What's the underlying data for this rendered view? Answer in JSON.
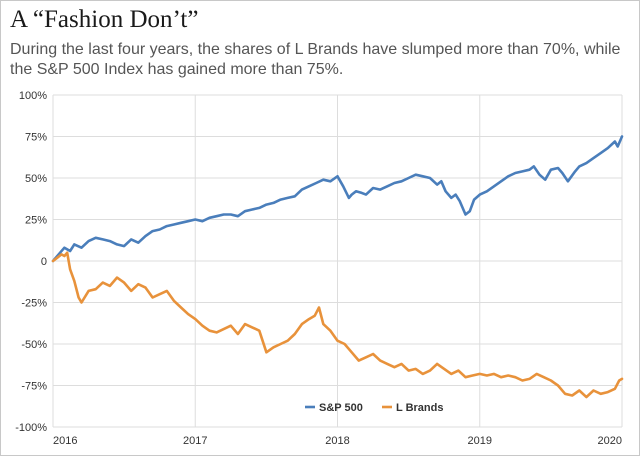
{
  "page": {
    "title": "A “Fashion Don’t”",
    "subtitle": "During the last four years, the shares of L Brands have slumped more than 70%, while the S&P 500 Index has gained more than 75%."
  },
  "colors": {
    "sp500": "#4a7ebb",
    "lbrands": "#e8923b",
    "grid": "#dddddd",
    "text": "#333333"
  },
  "chart_data": {
    "type": "line",
    "title": "A “Fashion Don’t”",
    "subtitle": "During the last four years, the shares of L Brands have slumped more than 70%, while the S&P 500 Index has gained more than 75%.",
    "xlabel": "",
    "ylabel": "",
    "xlim": [
      2016,
      2020
    ],
    "ylim": [
      -100,
      100
    ],
    "x_ticks": [
      2016,
      2017,
      2018,
      2019,
      2020
    ],
    "x_tick_labels": [
      "2016",
      "2017",
      "2018",
      "2019",
      "2020"
    ],
    "y_ticks": [
      100,
      75,
      50,
      25,
      0,
      -25,
      -50,
      -75,
      -100
    ],
    "y_tick_labels": [
      "100%",
      "75%",
      "50%",
      "25%",
      "0",
      "-25%",
      "-50%",
      "-75%",
      "-100%"
    ],
    "grid": true,
    "legend_position": "bottom-center",
    "series": [
      {
        "name": "S&P 500",
        "color": "#4a7ebb",
        "x": [
          2016.0,
          2016.05,
          2016.08,
          2016.12,
          2016.15,
          2016.2,
          2016.25,
          2016.3,
          2016.35,
          2016.4,
          2016.45,
          2016.5,
          2016.55,
          2016.6,
          2016.65,
          2016.7,
          2016.75,
          2016.8,
          2016.85,
          2016.9,
          2016.95,
          2017.0,
          2017.05,
          2017.1,
          2017.15,
          2017.2,
          2017.25,
          2017.3,
          2017.35,
          2017.4,
          2017.45,
          2017.5,
          2017.55,
          2017.6,
          2017.65,
          2017.7,
          2017.75,
          2017.8,
          2017.85,
          2017.9,
          2017.95,
          2018.0,
          2018.04,
          2018.08,
          2018.1,
          2018.13,
          2018.17,
          2018.2,
          2018.25,
          2018.3,
          2018.35,
          2018.4,
          2018.45,
          2018.5,
          2018.55,
          2018.6,
          2018.65,
          2018.7,
          2018.73,
          2018.76,
          2018.8,
          2018.83,
          2018.86,
          2018.9,
          2018.93,
          2018.96,
          2019.0,
          2019.05,
          2019.1,
          2019.15,
          2019.2,
          2019.25,
          2019.3,
          2019.35,
          2019.38,
          2019.42,
          2019.46,
          2019.5,
          2019.55,
          2019.58,
          2019.62,
          2019.67,
          2019.7,
          2019.75,
          2019.8,
          2019.85,
          2019.9,
          2019.95,
          2019.97,
          2020.0
        ],
        "values": [
          0,
          5,
          8,
          6,
          10,
          8,
          12,
          14,
          13,
          12,
          10,
          9,
          13,
          11,
          15,
          18,
          19,
          21,
          22,
          23,
          24,
          25,
          24,
          26,
          27,
          28,
          28,
          27,
          30,
          31,
          32,
          34,
          35,
          37,
          38,
          39,
          43,
          45,
          47,
          49,
          48,
          51,
          45,
          38,
          40,
          42,
          41,
          40,
          44,
          43,
          45,
          47,
          48,
          50,
          52,
          51,
          50,
          46,
          48,
          42,
          38,
          40,
          36,
          28,
          30,
          37,
          40,
          42,
          45,
          48,
          51,
          53,
          54,
          55,
          57,
          52,
          49,
          55,
          56,
          53,
          48,
          54,
          57,
          59,
          62,
          65,
          68,
          72,
          69,
          75
        ]
      },
      {
        "name": "L Brands",
        "color": "#e8923b",
        "x": [
          2016.0,
          2016.03,
          2016.06,
          2016.08,
          2016.1,
          2016.12,
          2016.15,
          2016.18,
          2016.2,
          2016.25,
          2016.3,
          2016.35,
          2016.4,
          2016.45,
          2016.5,
          2016.55,
          2016.6,
          2016.65,
          2016.7,
          2016.75,
          2016.8,
          2016.85,
          2016.9,
          2016.95,
          2017.0,
          2017.05,
          2017.1,
          2017.15,
          2017.2,
          2017.25,
          2017.3,
          2017.35,
          2017.4,
          2017.45,
          2017.5,
          2017.55,
          2017.6,
          2017.65,
          2017.7,
          2017.75,
          2017.8,
          2017.84,
          2017.87,
          2017.9,
          2017.95,
          2018.0,
          2018.05,
          2018.1,
          2018.15,
          2018.2,
          2018.25,
          2018.3,
          2018.35,
          2018.4,
          2018.45,
          2018.5,
          2018.55,
          2018.6,
          2018.65,
          2018.7,
          2018.75,
          2018.8,
          2018.85,
          2018.9,
          2018.95,
          2019.0,
          2019.05,
          2019.1,
          2019.15,
          2019.2,
          2019.25,
          2019.3,
          2019.35,
          2019.4,
          2019.45,
          2019.5,
          2019.55,
          2019.6,
          2019.65,
          2019.7,
          2019.75,
          2019.8,
          2019.85,
          2019.9,
          2019.95,
          2019.98,
          2020.0
        ],
        "values": [
          0,
          2,
          4,
          3,
          5,
          -5,
          -12,
          -22,
          -25,
          -18,
          -17,
          -13,
          -15,
          -10,
          -13,
          -18,
          -14,
          -16,
          -22,
          -20,
          -18,
          -24,
          -28,
          -32,
          -35,
          -39,
          -42,
          -43,
          -41,
          -39,
          -44,
          -38,
          -40,
          -42,
          -55,
          -52,
          -50,
          -48,
          -44,
          -38,
          -35,
          -33,
          -28,
          -38,
          -42,
          -48,
          -50,
          -55,
          -60,
          -58,
          -56,
          -60,
          -62,
          -64,
          -62,
          -66,
          -65,
          -68,
          -66,
          -62,
          -65,
          -68,
          -66,
          -70,
          -69,
          -68,
          -69,
          -68,
          -70,
          -69,
          -70,
          -72,
          -71,
          -68,
          -70,
          -72,
          -75,
          -80,
          -81,
          -78,
          -82,
          -78,
          -80,
          -79,
          -77,
          -72,
          -71
        ]
      }
    ]
  }
}
